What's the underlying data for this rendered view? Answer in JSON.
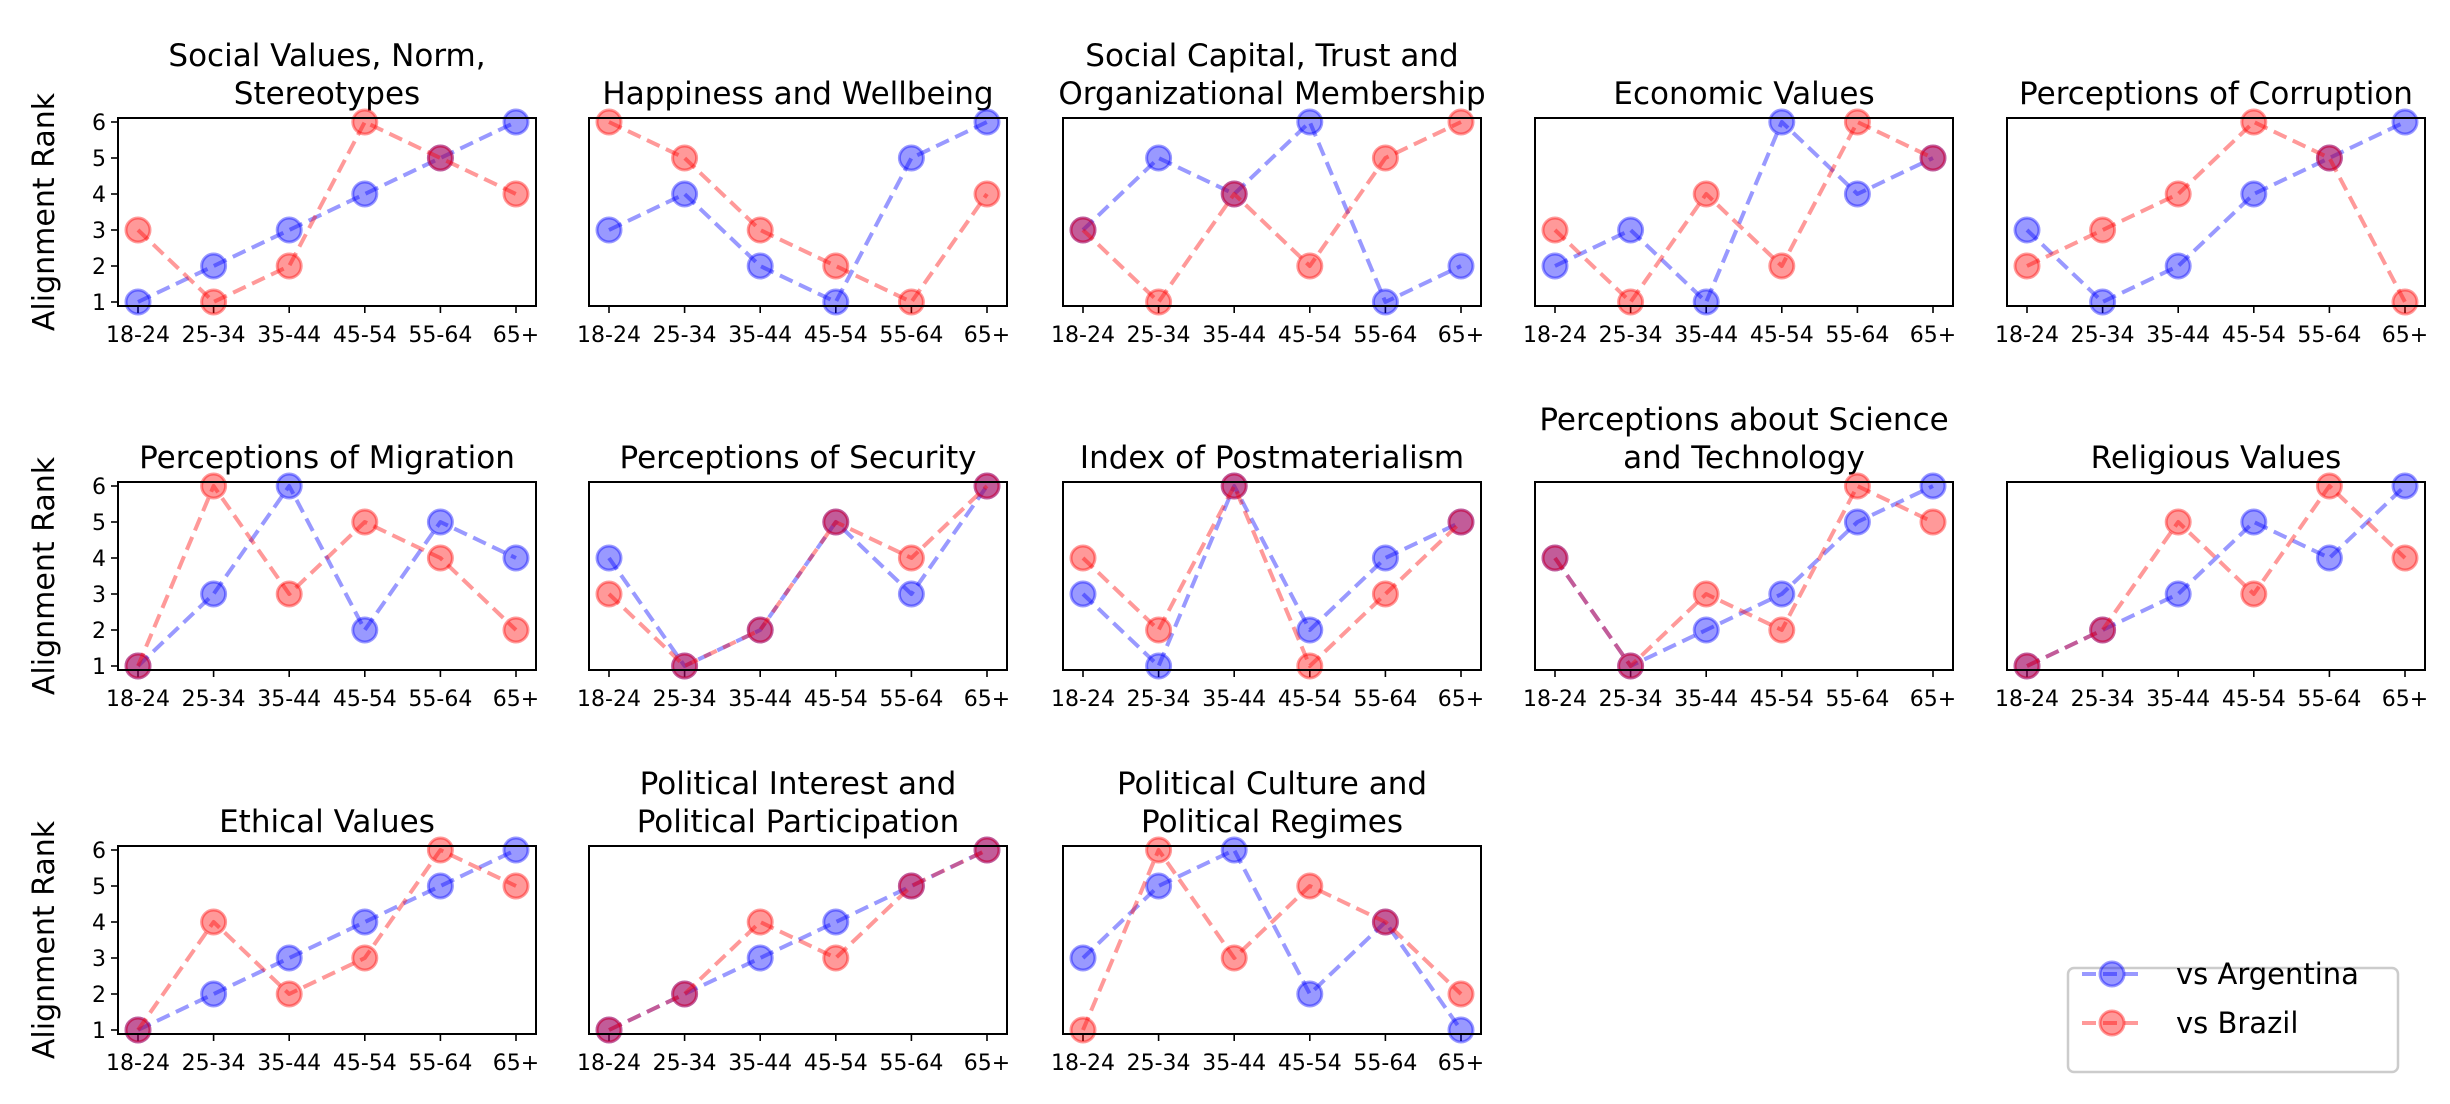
{
  "figure": {
    "ylabel": "Alignment Rank",
    "legend": {
      "placement": "lower-right",
      "entries": [
        {
          "label": "vs Argentina",
          "series": "argentina"
        },
        {
          "label": "vs Brazil",
          "series": "brazil"
        }
      ]
    },
    "colors": {
      "argentina": "#0000ff",
      "brazil": "#ff0000"
    }
  },
  "chart_data": [
    {
      "type": "line",
      "title": "Social Values, Norm,\nStereotypes",
      "categories": [
        "18-24",
        "25-34",
        "35-44",
        "45-54",
        "55-64",
        "65+"
      ],
      "ylim": [
        1,
        6
      ],
      "yticks": [
        1,
        2,
        3,
        4,
        5,
        6
      ],
      "series": [
        {
          "name": "vs Argentina",
          "values": [
            1,
            2,
            3,
            4,
            5,
            6
          ]
        },
        {
          "name": "vs Brazil",
          "values": [
            3,
            1,
            2,
            6,
            5,
            4
          ]
        }
      ]
    },
    {
      "type": "line",
      "title": "Happiness and Wellbeing",
      "categories": [
        "18-24",
        "25-34",
        "35-44",
        "45-54",
        "55-64",
        "65+"
      ],
      "ylim": [
        1,
        6
      ],
      "yticks": [
        1,
        2,
        3,
        4,
        5,
        6
      ],
      "series": [
        {
          "name": "vs Argentina",
          "values": [
            3,
            4,
            2,
            1,
            5,
            6
          ]
        },
        {
          "name": "vs Brazil",
          "values": [
            6,
            5,
            3,
            2,
            1,
            4
          ]
        }
      ]
    },
    {
      "type": "line",
      "title": "Social Capital, Trust and\nOrganizational Membership",
      "categories": [
        "18-24",
        "25-34",
        "35-44",
        "45-54",
        "55-64",
        "65+"
      ],
      "ylim": [
        1,
        6
      ],
      "yticks": [
        1,
        2,
        3,
        4,
        5,
        6
      ],
      "series": [
        {
          "name": "vs Argentina",
          "values": [
            3,
            5,
            4,
            6,
            1,
            2
          ]
        },
        {
          "name": "vs Brazil",
          "values": [
            3,
            1,
            4,
            2,
            5,
            6
          ]
        }
      ]
    },
    {
      "type": "line",
      "title": "Economic Values",
      "categories": [
        "18-24",
        "25-34",
        "35-44",
        "45-54",
        "55-64",
        "65+"
      ],
      "ylim": [
        1,
        6
      ],
      "yticks": [
        1,
        2,
        3,
        4,
        5,
        6
      ],
      "series": [
        {
          "name": "vs Argentina",
          "values": [
            2,
            3,
            1,
            6,
            4,
            5
          ]
        },
        {
          "name": "vs Brazil",
          "values": [
            3,
            1,
            4,
            2,
            6,
            5
          ]
        }
      ]
    },
    {
      "type": "line",
      "title": "Perceptions of Corruption",
      "categories": [
        "18-24",
        "25-34",
        "35-44",
        "45-54",
        "55-64",
        "65+"
      ],
      "ylim": [
        1,
        6
      ],
      "yticks": [
        1,
        2,
        3,
        4,
        5,
        6
      ],
      "series": [
        {
          "name": "vs Argentina",
          "values": [
            3,
            1,
            2,
            4,
            5,
            6
          ]
        },
        {
          "name": "vs Brazil",
          "values": [
            2,
            3,
            4,
            6,
            5,
            1
          ]
        }
      ]
    },
    {
      "type": "line",
      "title": "Perceptions of Migration",
      "categories": [
        "18-24",
        "25-34",
        "35-44",
        "45-54",
        "55-64",
        "65+"
      ],
      "ylim": [
        1,
        6
      ],
      "yticks": [
        1,
        2,
        3,
        4,
        5,
        6
      ],
      "series": [
        {
          "name": "vs Argentina",
          "values": [
            1,
            3,
            6,
            2,
            5,
            4
          ]
        },
        {
          "name": "vs Brazil",
          "values": [
            1,
            6,
            3,
            5,
            4,
            2
          ]
        }
      ]
    },
    {
      "type": "line",
      "title": "Perceptions of Security",
      "categories": [
        "18-24",
        "25-34",
        "35-44",
        "45-54",
        "55-64",
        "65+"
      ],
      "ylim": [
        1,
        6
      ],
      "yticks": [
        1,
        2,
        3,
        4,
        5,
        6
      ],
      "series": [
        {
          "name": "vs Argentina",
          "values": [
            4,
            1,
            2,
            5,
            3,
            6
          ]
        },
        {
          "name": "vs Brazil",
          "values": [
            3,
            1,
            2,
            5,
            4,
            6
          ]
        }
      ]
    },
    {
      "type": "line",
      "title": "Index of Postmaterialism",
      "categories": [
        "18-24",
        "25-34",
        "35-44",
        "45-54",
        "55-64",
        "65+"
      ],
      "ylim": [
        1,
        6
      ],
      "yticks": [
        1,
        2,
        3,
        4,
        5,
        6
      ],
      "series": [
        {
          "name": "vs Argentina",
          "values": [
            3,
            1,
            6,
            2,
            4,
            5
          ]
        },
        {
          "name": "vs Brazil",
          "values": [
            4,
            2,
            6,
            1,
            3,
            5
          ]
        }
      ]
    },
    {
      "type": "line",
      "title": "Perceptions about Science\nand Technology",
      "categories": [
        "18-24",
        "25-34",
        "35-44",
        "45-54",
        "55-64",
        "65+"
      ],
      "ylim": [
        1,
        6
      ],
      "yticks": [
        1,
        2,
        3,
        4,
        5,
        6
      ],
      "series": [
        {
          "name": "vs Argentina",
          "values": [
            4,
            1,
            2,
            3,
            5,
            6
          ]
        },
        {
          "name": "vs Brazil",
          "values": [
            4,
            1,
            3,
            2,
            6,
            5
          ]
        }
      ]
    },
    {
      "type": "line",
      "title": "Religious Values",
      "categories": [
        "18-24",
        "25-34",
        "35-44",
        "45-54",
        "55-64",
        "65+"
      ],
      "ylim": [
        1,
        6
      ],
      "yticks": [
        1,
        2,
        3,
        4,
        5,
        6
      ],
      "series": [
        {
          "name": "vs Argentina",
          "values": [
            1,
            2,
            3,
            5,
            4,
            6
          ]
        },
        {
          "name": "vs Brazil",
          "values": [
            1,
            2,
            5,
            3,
            6,
            4
          ]
        }
      ]
    },
    {
      "type": "line",
      "title": "Ethical Values",
      "categories": [
        "18-24",
        "25-34",
        "35-44",
        "45-54",
        "55-64",
        "65+"
      ],
      "ylim": [
        1,
        6
      ],
      "yticks": [
        1,
        2,
        3,
        4,
        5,
        6
      ],
      "series": [
        {
          "name": "vs Argentina",
          "values": [
            1,
            2,
            3,
            4,
            5,
            6
          ]
        },
        {
          "name": "vs Brazil",
          "values": [
            1,
            4,
            2,
            3,
            6,
            5
          ]
        }
      ]
    },
    {
      "type": "line",
      "title": "Political Interest and\nPolitical Participation",
      "categories": [
        "18-24",
        "25-34",
        "35-44",
        "45-54",
        "55-64",
        "65+"
      ],
      "ylim": [
        1,
        6
      ],
      "yticks": [
        1,
        2,
        3,
        4,
        5,
        6
      ],
      "series": [
        {
          "name": "vs Argentina",
          "values": [
            1,
            2,
            3,
            4,
            5,
            6
          ]
        },
        {
          "name": "vs Brazil",
          "values": [
            1,
            2,
            4,
            3,
            5,
            6
          ]
        }
      ]
    },
    {
      "type": "line",
      "title": "Political Culture and\nPolitical Regimes",
      "categories": [
        "18-24",
        "25-34",
        "35-44",
        "45-54",
        "55-64",
        "65+"
      ],
      "ylim": [
        1,
        6
      ],
      "yticks": [
        1,
        2,
        3,
        4,
        5,
        6
      ],
      "series": [
        {
          "name": "vs Argentina",
          "values": [
            3,
            5,
            6,
            2,
            4,
            1
          ]
        },
        {
          "name": "vs Brazil",
          "values": [
            1,
            6,
            3,
            5,
            4,
            2
          ]
        }
      ]
    }
  ]
}
